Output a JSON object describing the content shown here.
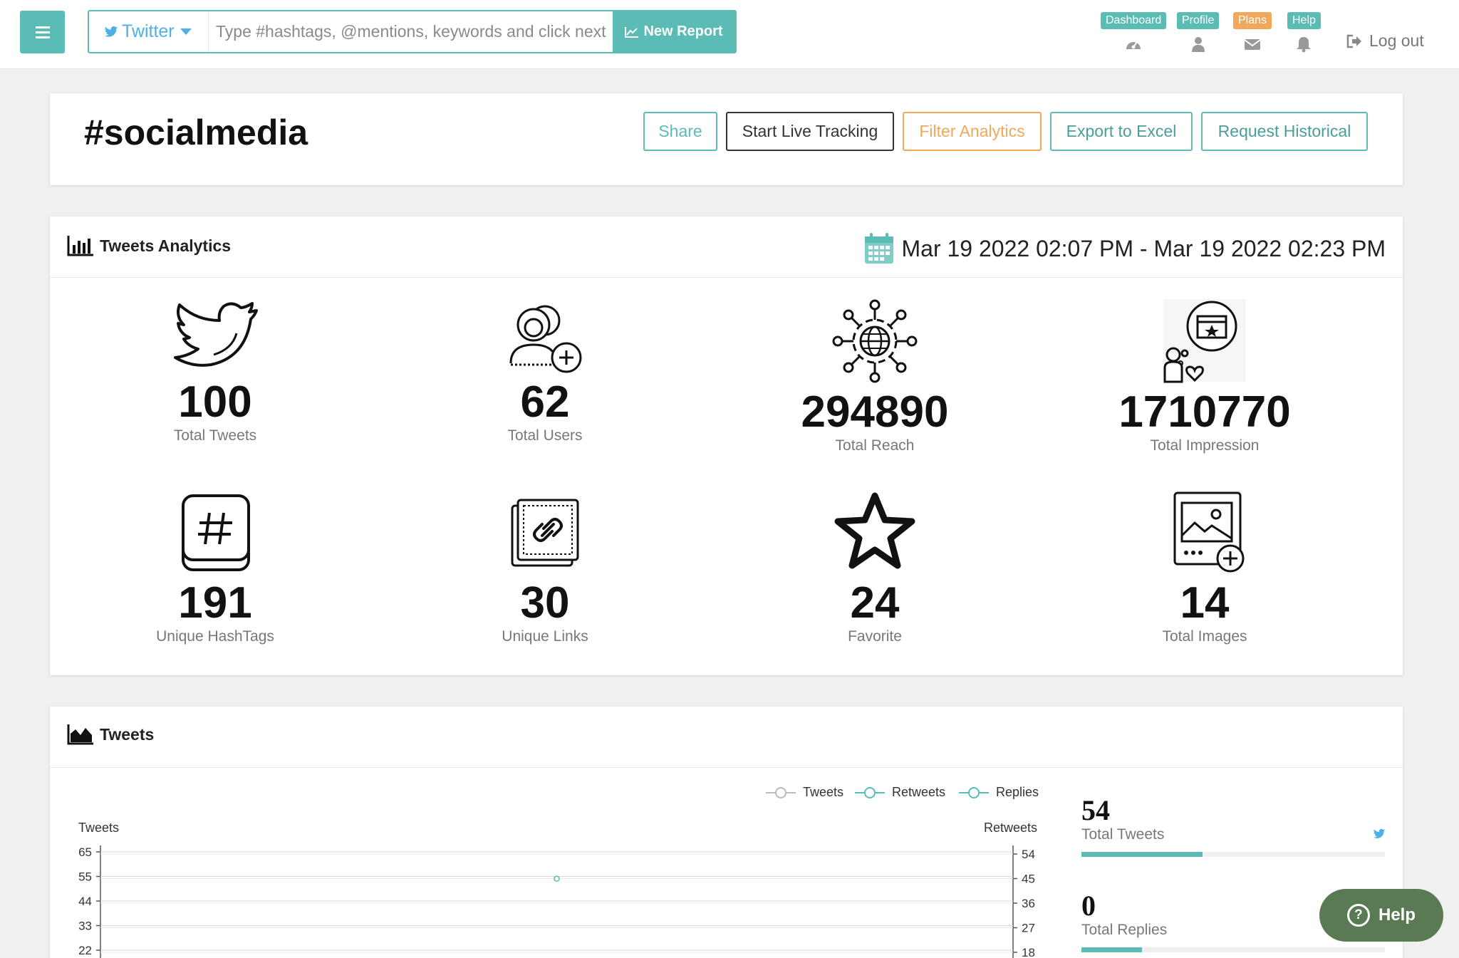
{
  "navbar": {
    "platform": "Twitter",
    "search_placeholder": "Type #hashtags, @mentions, keywords and click next",
    "new_report_label": "New Report",
    "items": [
      {
        "label": "Dashboard",
        "color": "#5bbcb5",
        "icon": "dashboard-icon"
      },
      {
        "label": "Profile",
        "color": "#5bbcb5",
        "icon": "user-icon"
      },
      {
        "label": "Plans",
        "color": "#f0a95b",
        "icon": "envelope-icon"
      },
      {
        "label": "Help",
        "color": "#5bbcb5",
        "icon": "bell-icon"
      }
    ],
    "logout_label": "Log out"
  },
  "report": {
    "title": "#socialmedia",
    "buttons": {
      "share": "Share",
      "live_tracking": "Start Live Tracking",
      "filter": "Filter Analytics",
      "export": "Export to Excel",
      "historical": "Request Historical"
    }
  },
  "analytics": {
    "title": "Tweets Analytics",
    "date_range": "Mar 19 2022 02:07 PM - Mar 19 2022 02:23 PM",
    "stats": [
      {
        "value": "100",
        "label": "Total Tweets",
        "icon": "twitter-bird-icon"
      },
      {
        "value": "62",
        "label": "Total Users",
        "icon": "add-users-icon"
      },
      {
        "value": "294890",
        "label": "Total Reach",
        "icon": "network-globe-icon"
      },
      {
        "value": "1710770",
        "label": "Total Impression",
        "icon": "impression-icon"
      },
      {
        "value": "191",
        "label": "Unique HashTags",
        "icon": "hashtag-icon"
      },
      {
        "value": "30",
        "label": "Unique Links",
        "icon": "link-icon"
      },
      {
        "value": "24",
        "label": "Favorite",
        "icon": "star-icon"
      },
      {
        "value": "14",
        "label": "Total Images",
        "icon": "add-image-icon"
      }
    ]
  },
  "tweets_section": {
    "title": "Tweets",
    "side_stats": [
      {
        "value": "54",
        "label": "Total Tweets",
        "progress": 0.4
      },
      {
        "value": "0",
        "label": "Total Replies",
        "progress": 0.2
      }
    ]
  },
  "chart_data": {
    "type": "line",
    "legend": [
      "Tweets",
      "Retweets",
      "Replies"
    ],
    "ylabel_left": "Tweets",
    "ylabel_right": "Retweets",
    "left_ticks": [
      "65",
      "55",
      "44",
      "33",
      "22"
    ],
    "right_ticks": [
      "54",
      "45",
      "36",
      "27",
      "18"
    ],
    "series": [
      {
        "name": "Tweets",
        "points": [
          {
            "x": 0.5,
            "y": 54
          }
        ]
      },
      {
        "name": "Retweets",
        "points": []
      },
      {
        "name": "Replies",
        "points": []
      }
    ]
  },
  "help_widget": {
    "label": "Help"
  }
}
